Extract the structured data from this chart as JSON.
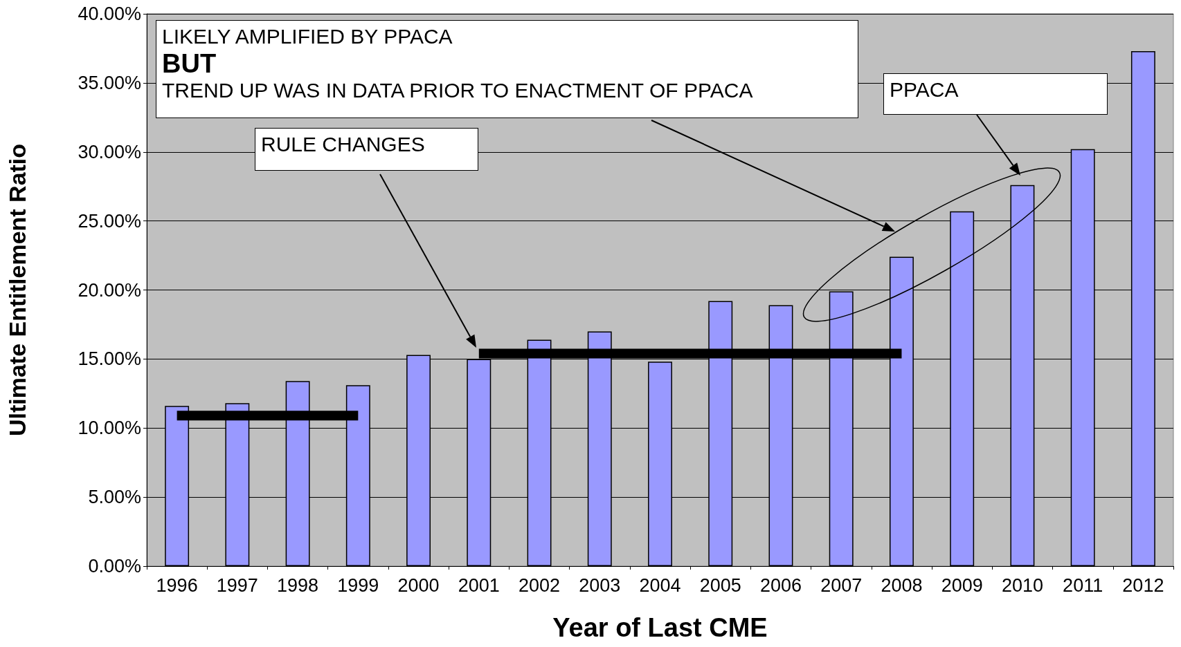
{
  "chart_data": {
    "type": "bar",
    "xlabel": "Year of Last CME",
    "ylabel": "Ultimate Entitlement Ratio",
    "categories": [
      "1996",
      "1997",
      "1998",
      "1999",
      "2000",
      "2001",
      "2002",
      "2003",
      "2004",
      "2005",
      "2006",
      "2007",
      "2008",
      "2009",
      "2010",
      "2011",
      "2012"
    ],
    "series": [
      {
        "color": "#9999ff",
        "values": [
          11.6,
          11.8,
          13.4,
          13.1,
          15.3,
          15.0,
          16.4,
          17.0,
          14.8,
          19.2,
          18.9,
          19.9,
          22.4,
          25.7,
          27.6,
          30.2,
          37.3
        ]
      },
      {
        "type": "line",
        "color": "#000000",
        "values": [
          10.9,
          10.9,
          10.9,
          10.9,
          null,
          null,
          null,
          null,
          null,
          null,
          null,
          null,
          null,
          null,
          null,
          null,
          null
        ]
      },
      {
        "type": "line",
        "color": "#000000",
        "values": [
          null,
          null,
          null,
          null,
          null,
          15.4,
          15.4,
          15.4,
          15.4,
          15.4,
          15.4,
          15.4,
          15.4,
          null,
          null,
          null,
          null
        ]
      }
    ],
    "ylim": [
      0,
      40
    ],
    "yticks": [
      {
        "value": 0,
        "label": "0.00%"
      },
      {
        "value": 5,
        "label": "5.00%"
      },
      {
        "value": 10,
        "label": "10.00%"
      },
      {
        "value": 15,
        "label": "15.00%"
      },
      {
        "value": 20,
        "label": "20.00%"
      },
      {
        "value": 25,
        "label": "25.00%"
      },
      {
        "value": 30,
        "label": "30.00%"
      },
      {
        "value": 35,
        "label": "35.00%"
      },
      {
        "value": 40,
        "label": "40.00%"
      }
    ],
    "grid": "y",
    "annotations": [
      "LIKELY AMPLIFIED BY PPACA",
      "BUT",
      "TREND UP WAS IN DATA PRIOR TO ENACTMENT OF PPACA",
      "RULE CHANGES",
      "PPACA"
    ]
  }
}
